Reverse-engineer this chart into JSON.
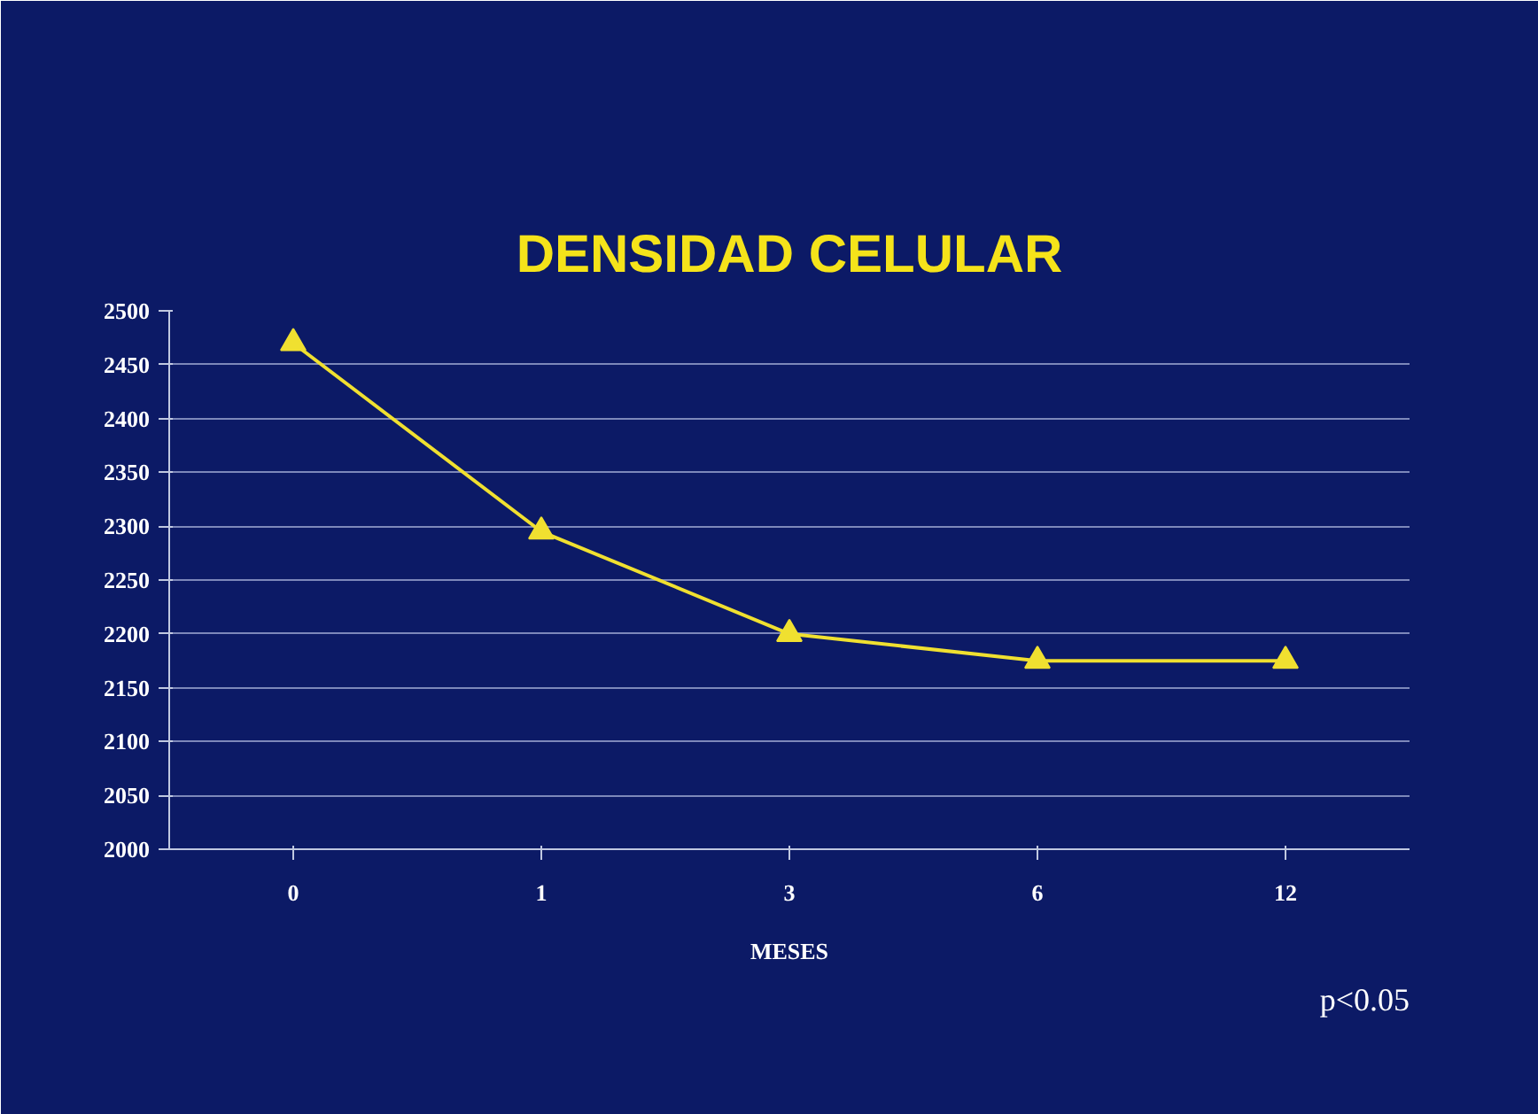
{
  "chart_data": {
    "type": "line",
    "title": "DENSIDAD CELULAR",
    "xlabel": "MESES",
    "categories": [
      "0",
      "1",
      "3",
      "6",
      "12"
    ],
    "series": [
      {
        "color": "#f0e030",
        "values": [
          2470,
          2295,
          2200,
          2175,
          2175
        ]
      }
    ],
    "ylim": [
      2000,
      2500
    ],
    "yticks": [
      2000,
      2050,
      2100,
      2150,
      2200,
      2250,
      2300,
      2350,
      2400,
      2450,
      2500
    ],
    "grid": "y",
    "marker": "triangle",
    "line_style": "solid",
    "annotations": [
      "p<0.05"
    ]
  }
}
